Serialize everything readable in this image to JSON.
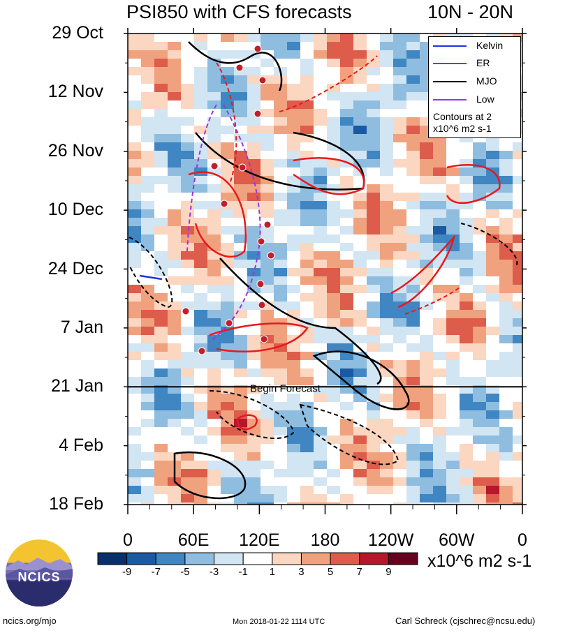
{
  "title_left": "PSI850 with CFS forecasts",
  "title_right": "10N - 20N",
  "chart_data": {
    "type": "heatmap",
    "title": "PSI850 with CFS forecasts",
    "region": "10N - 20N",
    "y_tick_labels": [
      "29 Oct",
      "12 Nov",
      "26 Nov",
      "10 Dec",
      "24 Dec",
      "7 Jan",
      "21 Jan",
      "4 Feb",
      "18 Feb"
    ],
    "x_tick_labels": [
      "0",
      "60E",
      "120E",
      "180",
      "120W",
      "60W",
      "0"
    ],
    "forecast_label": "Begin Forecast",
    "forecast_begin": "21 Jan",
    "colorbar": {
      "labels": [
        "-9",
        "-7",
        "-5",
        "-3",
        "-1",
        "1",
        "3",
        "5",
        "7",
        "9"
      ],
      "colors": [
        "#08306b",
        "#1a5aa3",
        "#3f86c2",
        "#8fbde0",
        "#d2e5f3",
        "#ffffff",
        "#fbd6c0",
        "#f0a27f",
        "#dd5c4b",
        "#b5172c",
        "#67001f"
      ],
      "units": "x10^6 m2 s-1"
    },
    "legend": [
      {
        "name": "Kelvin",
        "color": "#1d36d8"
      },
      {
        "name": "ER",
        "color": "#e8181c"
      },
      {
        "name": "MJO",
        "color": "#000000"
      },
      {
        "name": "Low",
        "color": "#9a35df"
      }
    ],
    "contour_note": "Contours at 2 x10^6 m2 s-1"
  },
  "logo_text": "NCICS",
  "footer": {
    "left": "ncics.org/mjo",
    "center": "Mon 2018-01-22 1114 UTC",
    "right": "Carl Schreck (cjschrec@ncsu.edu)"
  }
}
